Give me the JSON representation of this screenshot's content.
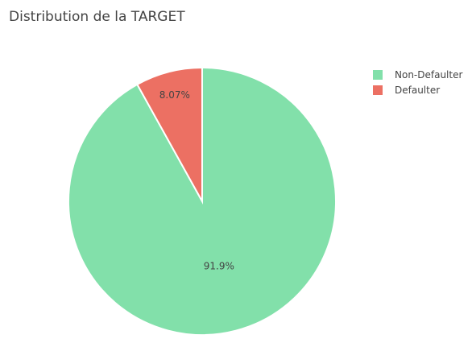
{
  "chart_data": {
    "type": "pie",
    "title": "Distribution de la TARGET",
    "labels": [
      "Non-Defaulter",
      "Defaulter"
    ],
    "values": [
      91.93,
      8.07
    ],
    "text_labels": [
      "91.9%",
      "8.07%"
    ],
    "colors": [
      "#82e0aa",
      "#ec7063"
    ],
    "legend": "top-right",
    "direction": "clockwise",
    "start": "top"
  }
}
